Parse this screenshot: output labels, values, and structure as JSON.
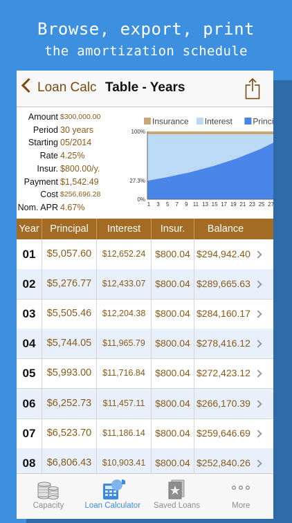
{
  "promo": {
    "line1": "Browse, export, print",
    "line2": "the amortization schedule"
  },
  "nav": {
    "back_label": "Loan Calc",
    "title": "Table - Years",
    "icons": {
      "back": "chevron-left-icon",
      "share": "share-icon"
    }
  },
  "summary": [
    {
      "key": "Amount",
      "value": "$300,000.00",
      "small": true
    },
    {
      "key": "Period",
      "value": "30 years",
      "small": false
    },
    {
      "key": "Starting",
      "value": "05/2014",
      "small": false
    },
    {
      "key": "Rate",
      "value": "4.25%",
      "small": false
    },
    {
      "key": "Insur.",
      "value": "$800.00/y.",
      "small": false
    },
    {
      "key": "Payment",
      "value": "$1,542.49",
      "small": false
    },
    {
      "key": "Cost",
      "value": "$256,696.28",
      "small": true
    },
    {
      "key": "Nom. APR",
      "value": "4.67%",
      "small": false
    }
  ],
  "chart_data": {
    "type": "area",
    "legend": [
      "Insurance",
      "Interest",
      "Principal"
    ],
    "legend_position": "top",
    "colors": {
      "Insurance": "#c8a877",
      "Interest": "#bcd9f5",
      "Principal": "#4a86e8"
    },
    "y_tick_labels": [
      "100%",
      "27.3%",
      "0%"
    ],
    "y_ticks": [
      100,
      27.3,
      0
    ],
    "ylim": [
      0,
      100
    ],
    "x_tick_labels": [
      "1",
      "3",
      "5",
      "7",
      "9",
      "11",
      "13",
      "15",
      "17",
      "19",
      "21",
      "23",
      "25",
      "27",
      "29"
    ],
    "xlim": [
      1,
      30
    ],
    "x": [
      1,
      5,
      10,
      15,
      20,
      25,
      30
    ],
    "series": [
      {
        "name": "Principal",
        "values": [
          27.3,
          32.3,
          39.7,
          48.9,
          60.1,
          73.9,
          91.0
        ]
      },
      {
        "name": "Interest",
        "values": [
          68.4,
          63.4,
          56.0,
          46.8,
          35.6,
          21.8,
          4.7
        ]
      },
      {
        "name": "Insurance",
        "values": [
          4.3,
          4.3,
          4.3,
          4.3,
          4.3,
          4.3,
          4.3
        ]
      }
    ],
    "grid": false
  },
  "table": {
    "headers": [
      "Year",
      "Principal",
      "Interest",
      "Insur.",
      "Balance"
    ],
    "rows": [
      [
        "01",
        "$5,057.60",
        "$12,652.24",
        "$800.04",
        "$294,942.40"
      ],
      [
        "02",
        "$5,276.77",
        "$12,433.07",
        "$800.04",
        "$289,665.63"
      ],
      [
        "03",
        "$5,505.46",
        "$12,204.38",
        "$800.04",
        "$284,160.17"
      ],
      [
        "04",
        "$5,744.05",
        "$11,965.79",
        "$800.04",
        "$278,416.12"
      ],
      [
        "05",
        "$5,993.00",
        "$11,716.84",
        "$800.04",
        "$272,423.12"
      ],
      [
        "06",
        "$6,252.73",
        "$11,457.11",
        "$800.04",
        "$266,170.39"
      ],
      [
        "07",
        "$6,523.70",
        "$11,186.14",
        "$800.04",
        "$259,646.69"
      ],
      [
        "08",
        "$6,806.43",
        "$10,903.41",
        "$800.04",
        "$252,840.26"
      ]
    ]
  },
  "tabs": [
    {
      "label": "Capacity",
      "icon": "coin-stack-icon",
      "active": false
    },
    {
      "label": "Loan Calculator",
      "icon": "calculator-icon",
      "active": true
    },
    {
      "label": "Saved Loans",
      "icon": "saved-loans-icon",
      "active": false
    },
    {
      "label": "More",
      "icon": "more-dots-icon",
      "active": false
    }
  ],
  "colors": {
    "background": "#3d8fe0",
    "header_bar": "#a36b24",
    "accent_text": "#8a5a18",
    "active_tab": "#3a8be0"
  }
}
